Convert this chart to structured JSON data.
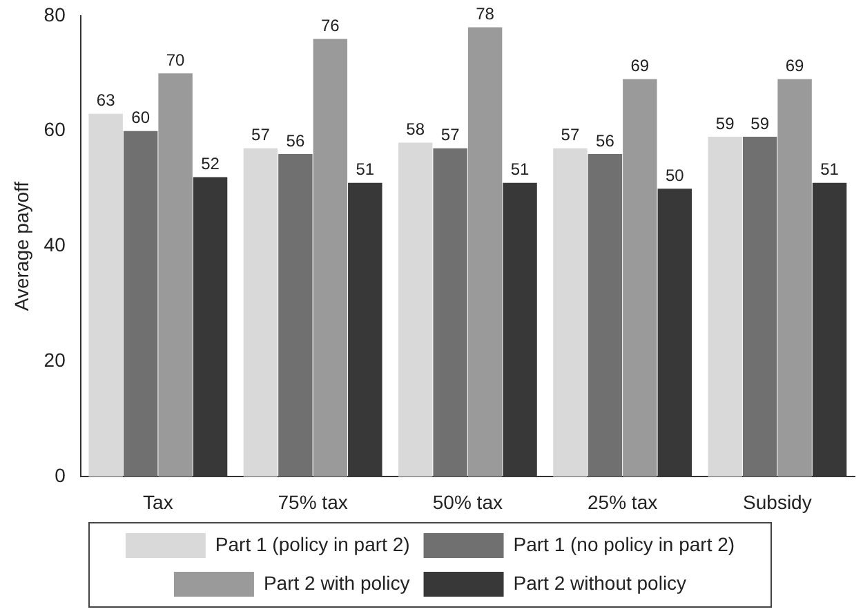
{
  "chart_data": {
    "type": "bar",
    "ylabel": "Average payoff",
    "categories": [
      "Tax",
      "75% tax",
      "50% tax",
      "25% tax",
      "Subsidy"
    ],
    "series": [
      {
        "name": "Part 1 (policy in part 2)",
        "color": "#d9d9d9",
        "values": [
          63,
          57,
          58,
          57,
          59
        ]
      },
      {
        "name": "Part 1 (no policy in part 2)",
        "color": "#707070",
        "values": [
          60,
          56,
          57,
          56,
          59
        ]
      },
      {
        "name": "Part 2 with policy",
        "color": "#9a9a9a",
        "values": [
          70,
          76,
          78,
          69,
          69
        ]
      },
      {
        "name": "Part 2 without policy",
        "color": "#383838",
        "values": [
          52,
          51,
          51,
          50,
          51
        ]
      }
    ],
    "ylim": [
      0,
      80
    ],
    "yticks": [
      0,
      20,
      40,
      60,
      80
    ],
    "grid": false,
    "legend": "bottom",
    "data_labels": true
  }
}
